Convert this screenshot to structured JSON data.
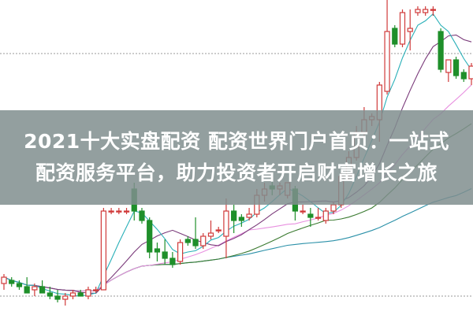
{
  "headline": {
    "line1": "2021十大实盘配资 配资世界门户首页：一站式",
    "line2": "配资服务平台，助力投资者开启财富增长之旅"
  },
  "chart_data": {
    "type": "candlestick",
    "title": "",
    "grid": "dotted horizontal",
    "colors": {
      "up": "#d03a3a",
      "down": "#1f8f2a",
      "ma5": "#2ab0b8",
      "ma10": "#7a3a7a",
      "ma20": "#e890e0",
      "ma30": "#3a7a30",
      "ma60": "#2a90a8",
      "banner": "#808e8e"
    },
    "moving_averages": [
      5,
      10,
      20,
      30,
      60
    ],
    "ylim": [
      0,
      100
    ],
    "gridlines": [
      83,
      6
    ],
    "ohlc": [
      [
        10,
        13,
        8,
        12
      ],
      [
        11,
        12,
        9,
        10
      ],
      [
        10,
        11,
        8,
        9
      ],
      [
        9,
        12,
        7,
        7
      ],
      [
        8,
        10,
        6,
        9
      ],
      [
        9,
        11,
        7,
        7
      ],
      [
        7,
        9,
        5,
        6
      ],
      [
        6,
        8,
        4,
        5
      ],
      [
        5,
        7,
        3,
        6
      ],
      [
        6,
        8,
        5,
        7
      ],
      [
        7,
        8,
        6,
        6
      ],
      [
        6,
        9,
        5,
        8
      ],
      [
        8,
        9,
        7,
        8
      ],
      [
        8,
        34,
        8,
        33
      ],
      [
        33,
        34,
        32,
        33
      ],
      [
        33,
        34,
        32,
        33
      ],
      [
        33,
        34,
        32,
        33
      ],
      [
        40,
        42,
        30,
        33
      ],
      [
        33,
        34,
        29,
        30
      ],
      [
        30,
        31,
        18,
        20
      ],
      [
        21,
        23,
        17,
        20
      ],
      [
        20,
        24,
        16,
        18
      ],
      [
        18,
        20,
        15,
        16
      ],
      [
        17,
        24,
        16,
        23
      ],
      [
        24,
        25,
        22,
        23
      ],
      [
        24,
        31,
        21,
        22
      ],
      [
        22,
        26,
        21,
        25
      ],
      [
        25,
        30,
        24,
        26
      ],
      [
        27,
        28,
        26,
        27
      ],
      [
        25,
        37,
        18,
        33
      ],
      [
        33,
        35,
        26,
        30
      ],
      [
        31,
        32,
        28,
        30
      ],
      [
        31,
        34,
        30,
        32
      ],
      [
        32,
        40,
        31,
        38
      ],
      [
        38,
        42,
        36,
        40
      ],
      [
        41,
        44,
        38,
        40
      ],
      [
        40,
        42,
        38,
        41
      ],
      [
        38,
        42,
        37,
        42
      ],
      [
        40,
        41,
        30,
        33
      ],
      [
        33,
        35,
        32,
        33
      ],
      [
        32,
        34,
        28,
        31
      ],
      [
        31,
        34,
        30,
        31
      ],
      [
        30,
        34,
        29,
        33
      ],
      [
        33,
        36,
        32,
        35
      ],
      [
        35,
        45,
        34,
        44
      ],
      [
        44,
        52,
        43,
        50
      ],
      [
        50,
        60,
        49,
        58
      ],
      [
        58,
        66,
        56,
        62
      ],
      [
        62,
        64,
        60,
        63
      ],
      [
        62,
        74,
        55,
        73
      ],
      [
        71,
        100,
        70,
        90
      ],
      [
        91,
        92,
        85,
        86
      ],
      [
        86,
        97,
        85,
        96
      ],
      [
        90,
        97,
        84,
        91
      ],
      [
        96,
        98,
        95,
        97
      ],
      [
        96,
        98,
        95,
        97
      ],
      [
        97,
        98,
        95,
        97
      ],
      [
        90,
        91,
        77,
        78
      ],
      [
        77,
        81,
        74,
        81
      ],
      [
        81,
        82,
        75,
        76
      ],
      [
        77,
        78,
        74,
        75
      ],
      [
        75,
        80,
        73,
        79
      ]
    ]
  }
}
